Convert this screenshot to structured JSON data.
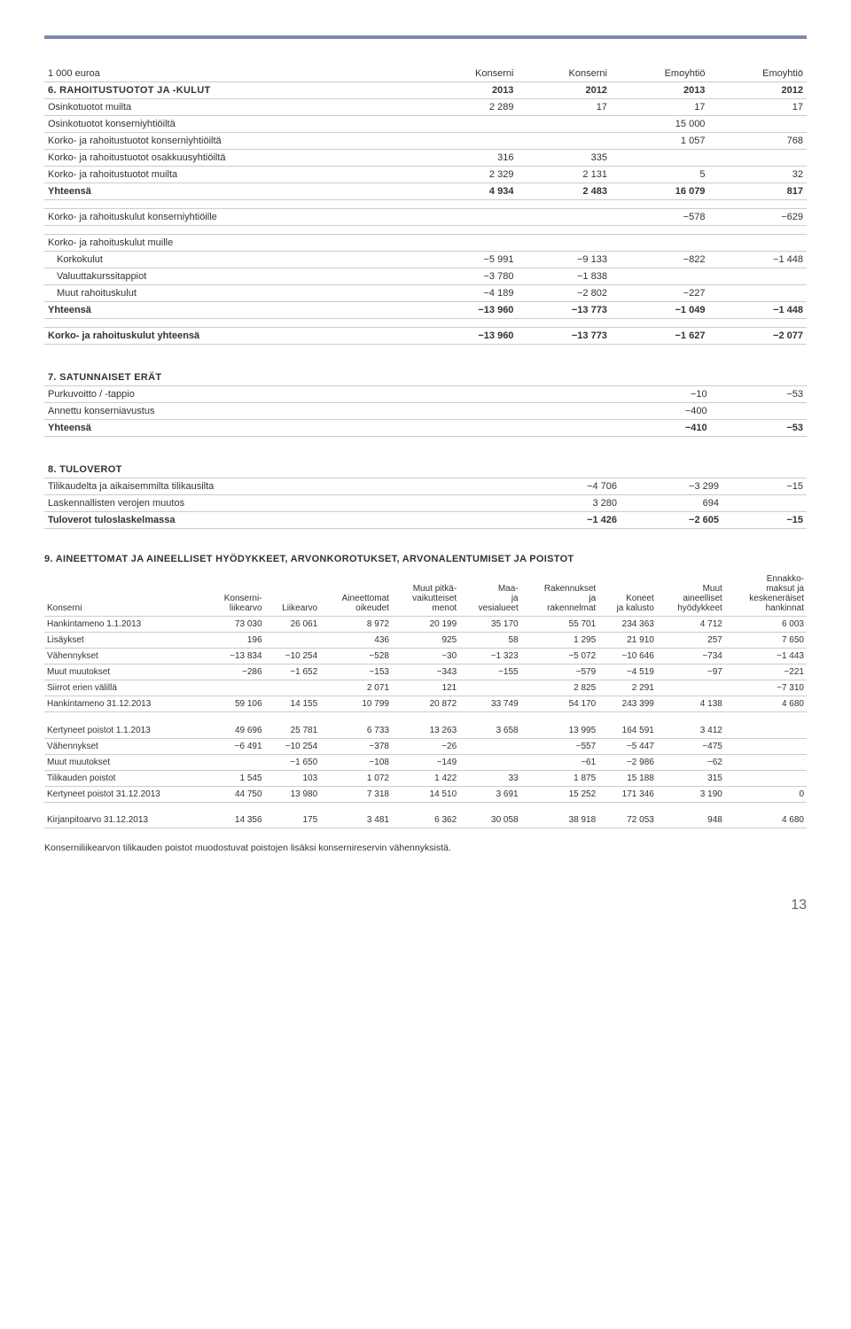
{
  "topline": "1 000 euroa",
  "sec6": {
    "title": "6. RAHOITUSTUOTOT JA -KULUT",
    "cols": [
      "Konserni",
      "Konserni",
      "Emoyhtiö",
      "Emoyhtiö"
    ],
    "years": [
      "2013",
      "2012",
      "2013",
      "2012"
    ],
    "rows": [
      {
        "l": "Osinkotuotot muilta",
        "v": [
          "2 289",
          "17",
          "17",
          "17"
        ]
      },
      {
        "l": "Osinkotuotot konserniyhtiöiltä",
        "v": [
          "",
          "",
          "15 000",
          ""
        ]
      },
      {
        "l": "Korko- ja rahoitustuotot konserniyhtiöiltä",
        "v": [
          "",
          "",
          "1 057",
          "768"
        ]
      },
      {
        "l": "Korko- ja rahoitustuotot osakkuusyhtiöiltä",
        "v": [
          "316",
          "335",
          "",
          ""
        ]
      },
      {
        "l": "Korko- ja rahoitustuotot muilta",
        "v": [
          "2 329",
          "2 131",
          "5",
          "32"
        ]
      },
      {
        "l": "Yhteensä",
        "v": [
          "4 934",
          "2 483",
          "16 079",
          "817"
        ]
      },
      {
        "l": "Korko- ja rahoituskulut konserniyhtiöille",
        "v": [
          "",
          "",
          "−578",
          "−629"
        ]
      }
    ],
    "sub_label": "Korko- ja rahoituskulut muille",
    "sub_rows": [
      {
        "l": "Korkokulut",
        "v": [
          "−5 991",
          "−9 133",
          "−822",
          "−1 448"
        ]
      },
      {
        "l": "Valuuttakurssitappiot",
        "v": [
          "−3 780",
          "−1 838",
          "",
          ""
        ]
      },
      {
        "l": "Muut rahoituskulut",
        "v": [
          "−4 189",
          "−2 802",
          "−227",
          ""
        ]
      }
    ],
    "sub_total": {
      "l": "Yhteensä",
      "v": [
        "−13 960",
        "−13 773",
        "−1 049",
        "−1 448"
      ]
    },
    "grand": {
      "l": "Korko- ja rahoituskulut yhteensä",
      "v": [
        "−13 960",
        "−13 773",
        "−1 627",
        "−2 077"
      ]
    }
  },
  "sec7": {
    "title": "7. SATUNNAISET ERÄT",
    "rows": [
      {
        "l": "Purkuvoitto / -tappio",
        "v": [
          "",
          "",
          "−10",
          "−53"
        ]
      },
      {
        "l": "Annettu konserniavustus",
        "v": [
          "",
          "",
          "−400",
          ""
        ]
      },
      {
        "l": "Yhteensä",
        "v": [
          "",
          "",
          "−410",
          "−53"
        ]
      }
    ]
  },
  "sec8": {
    "title": "8. TULOVEROT",
    "rows": [
      {
        "l": "Tilikaudelta ja aikaisemmilta tilikausilta",
        "v": [
          "−4 706",
          "−3 299",
          "",
          "−15"
        ]
      },
      {
        "l": "Laskennallisten verojen muutos",
        "v": [
          "3 280",
          "694",
          "",
          ""
        ]
      },
      {
        "l": "Tuloverot tuloslaskelmassa",
        "v": [
          "−1 426",
          "−2 605",
          "",
          "−15"
        ]
      }
    ]
  },
  "sec9": {
    "title": "9. AINEETTOMAT JA AINEELLISET HYÖDYKKEET, ARVONKOROTUKSET, ARVONALENTUMISET JA POISTOT",
    "head_row1": [
      "Konserni",
      "Konserni-liikearvo",
      "Liikearvo",
      "Aineettomat oikeudet",
      "Muut pitkä-vaikutteiset menot",
      "Maa- ja vesialueet",
      "Rakennukset ja rakennelmat",
      "Koneet ja kalusto",
      "Muut aineelliset hyödykkeet",
      "Ennakko-maksut ja keskeneräiset hankinnat"
    ],
    "rows": [
      {
        "l": "Hankintameno 1.1.2013",
        "v": [
          "73 030",
          "26 061",
          "8 972",
          "20 199",
          "35 170",
          "55 701",
          "234 363",
          "4 712",
          "6 003"
        ]
      },
      {
        "l": "Lisäykset",
        "v": [
          "196",
          "",
          "436",
          "925",
          "58",
          "1 295",
          "21 910",
          "257",
          "7 650"
        ]
      },
      {
        "l": "Vähennykset",
        "v": [
          "−13 834",
          "−10 254",
          "−528",
          "−30",
          "−1 323",
          "−5 072",
          "−10 646",
          "−734",
          "−1 443"
        ]
      },
      {
        "l": "Muut muutokset",
        "v": [
          "−286",
          "−1 652",
          "−153",
          "−343",
          "−155",
          "−579",
          "−4 519",
          "−97",
          "−221"
        ]
      },
      {
        "l": "Siirrot erien välillä",
        "v": [
          "",
          "",
          "2 071",
          "121",
          "",
          "2 825",
          "2 291",
          "",
          "−7 310"
        ]
      },
      {
        "l": "Hankintameno 31.12.2013",
        "v": [
          "59 106",
          "14 155",
          "10 799",
          "20 872",
          "33 749",
          "54 170",
          "243 399",
          "4 138",
          "4 680"
        ]
      }
    ],
    "rows2": [
      {
        "l": "Kertyneet poistot 1.1.2013",
        "v": [
          "49 696",
          "25 781",
          "6 733",
          "13 263",
          "3 658",
          "13 995",
          "164 591",
          "3 412",
          ""
        ]
      },
      {
        "l": "Vähennykset",
        "v": [
          "−6 491",
          "−10 254",
          "−378",
          "−26",
          "",
          "−557",
          "−5 447",
          "−475",
          ""
        ]
      },
      {
        "l": "Muut muutokset",
        "v": [
          "",
          "−1 650",
          "−108",
          "−149",
          "",
          "−61",
          "−2 986",
          "−62",
          ""
        ]
      },
      {
        "l": "Tilikauden poistot",
        "v": [
          "1 545",
          "103",
          "1 072",
          "1 422",
          "33",
          "1 875",
          "15 188",
          "315",
          ""
        ]
      },
      {
        "l": "Kertyneet poistot 31.12.2013",
        "v": [
          "44 750",
          "13 980",
          "7 318",
          "14 510",
          "3 691",
          "15 252",
          "171 346",
          "3 190",
          "0"
        ]
      }
    ],
    "rows3": [
      {
        "l": "Kirjanpitoarvo 31.12.2013",
        "v": [
          "14 356",
          "175",
          "3 481",
          "6 362",
          "30 058",
          "38 918",
          "72 053",
          "948",
          "4 680"
        ]
      }
    ],
    "note": "Konserniliikearvon tilikauden poistot muodostuvat poistojen lisäksi konsernireservin vähennyksistä."
  },
  "page": "13"
}
